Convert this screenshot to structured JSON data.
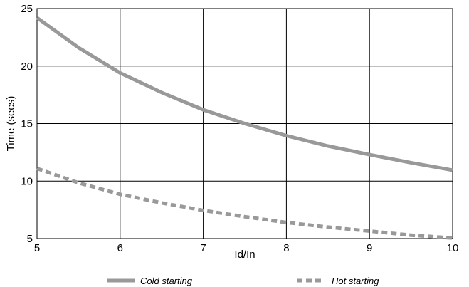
{
  "chart_data": {
    "type": "line",
    "title": "",
    "xlabel": "Id/In",
    "ylabel": "Time (secs)",
    "xlim": [
      5,
      10
    ],
    "ylim": [
      5,
      25
    ],
    "x_ticks": [
      5,
      6,
      7,
      8,
      9,
      10
    ],
    "y_ticks": [
      5,
      10,
      15,
      20,
      25
    ],
    "grid": true,
    "legend_position": "bottom",
    "series": [
      {
        "name": "Cold starting",
        "style": "solid",
        "color": "#999999",
        "x": [
          5,
          5.5,
          6,
          6.5,
          7,
          7.5,
          8,
          8.5,
          9,
          9.5,
          10
        ],
        "y": [
          24.2,
          21.6,
          19.4,
          17.7,
          16.2,
          15.0,
          13.95,
          13.05,
          12.3,
          11.6,
          10.95
        ]
      },
      {
        "name": "Hot starting",
        "style": "dashed",
        "color": "#999999",
        "x": [
          5,
          5.5,
          6,
          6.5,
          7,
          7.5,
          8,
          8.5,
          9,
          9.5,
          10
        ],
        "y": [
          11.1,
          9.85,
          8.85,
          8.1,
          7.45,
          6.9,
          6.4,
          6.0,
          5.65,
          5.3,
          5.05
        ]
      }
    ]
  }
}
